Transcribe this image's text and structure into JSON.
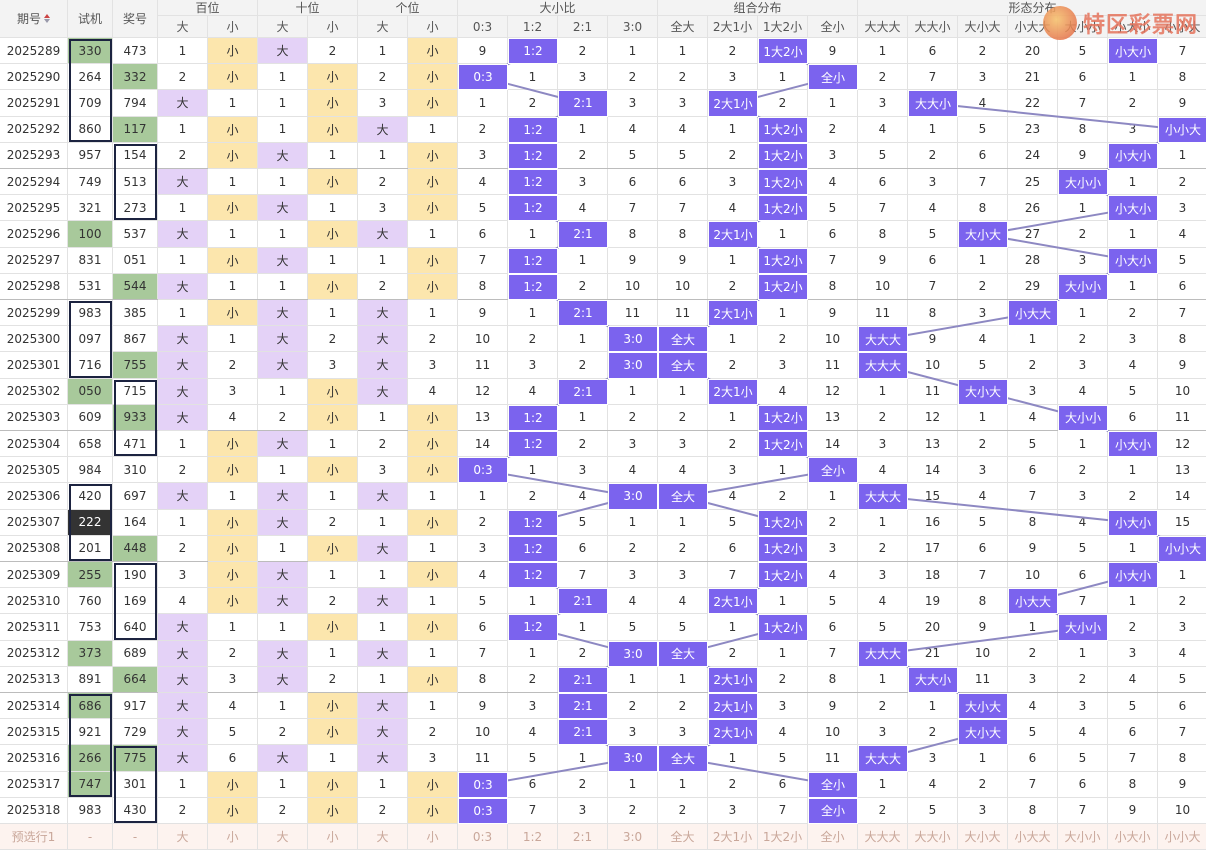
{
  "header": {
    "groups": [
      "期号",
      "试机",
      "奖号",
      "百位",
      "十位",
      "个位",
      "大小比",
      "组合分布",
      "形态分布"
    ],
    "sub_titles": [
      "大",
      "小",
      "大",
      "小",
      "大",
      "小",
      "0:3",
      "1:2",
      "2:1",
      "3:0",
      "全大",
      "2大1小",
      "1大2小",
      "全小",
      "大大大",
      "大大小",
      "大小大",
      "小大大",
      "大小小",
      "小大小",
      "小小大"
    ]
  },
  "rows": [
    {
      "period": "2025289",
      "trial": "330",
      "draw": "473",
      "cells": [
        "1",
        "小",
        "大",
        "2",
        "1",
        "小",
        "9",
        "1:2",
        "2",
        "1",
        "1",
        "2",
        "1大2小",
        "9",
        "1",
        "6",
        "2",
        "20",
        "5",
        "小大小",
        "7"
      ]
    },
    {
      "period": "2025290",
      "trial": "264",
      "draw": "332",
      "cells": [
        "2",
        "小",
        "1",
        "小",
        "2",
        "小",
        "0:3",
        "1",
        "3",
        "2",
        "2",
        "3",
        "1",
        "全小",
        "2",
        "7",
        "3",
        "21",
        "6",
        "1",
        "8"
      ]
    },
    {
      "period": "2025291",
      "trial": "709",
      "draw": "794",
      "cells": [
        "大",
        "1",
        "1",
        "小",
        "3",
        "小",
        "1",
        "2",
        "2:1",
        "3",
        "3",
        "2大1小",
        "2",
        "1",
        "3",
        "大大小",
        "4",
        "22",
        "7",
        "2",
        "9"
      ]
    },
    {
      "period": "2025292",
      "trial": "860",
      "draw": "117",
      "cells": [
        "1",
        "小",
        "1",
        "小",
        "大",
        "1",
        "2",
        "1:2",
        "1",
        "4",
        "4",
        "1",
        "1大2小",
        "2",
        "4",
        "1",
        "5",
        "23",
        "8",
        "3",
        "小小大"
      ]
    },
    {
      "period": "2025293",
      "trial": "957",
      "draw": "154",
      "cells": [
        "2",
        "小",
        "大",
        "1",
        "1",
        "小",
        "3",
        "1:2",
        "2",
        "5",
        "5",
        "2",
        "1大2小",
        "3",
        "5",
        "2",
        "6",
        "24",
        "9",
        "小大小",
        "1"
      ]
    },
    {
      "period": "2025294",
      "trial": "749",
      "draw": "513",
      "cells": [
        "大",
        "1",
        "1",
        "小",
        "2",
        "小",
        "4",
        "1:2",
        "3",
        "6",
        "6",
        "3",
        "1大2小",
        "4",
        "6",
        "3",
        "7",
        "25",
        "大小小",
        "1",
        "2"
      ]
    },
    {
      "period": "2025295",
      "trial": "321",
      "draw": "273",
      "cells": [
        "1",
        "小",
        "大",
        "1",
        "3",
        "小",
        "5",
        "1:2",
        "4",
        "7",
        "7",
        "4",
        "1大2小",
        "5",
        "7",
        "4",
        "8",
        "26",
        "1",
        "小大小",
        "3"
      ]
    },
    {
      "period": "2025296",
      "trial": "100",
      "draw": "537",
      "cells": [
        "大",
        "1",
        "1",
        "小",
        "大",
        "1",
        "6",
        "1",
        "2:1",
        "8",
        "8",
        "2大1小",
        "1",
        "6",
        "8",
        "5",
        "大小大",
        "27",
        "2",
        "1",
        "4"
      ]
    },
    {
      "period": "2025297",
      "trial": "831",
      "draw": "051",
      "cells": [
        "1",
        "小",
        "大",
        "1",
        "1",
        "小",
        "7",
        "1:2",
        "1",
        "9",
        "9",
        "1",
        "1大2小",
        "7",
        "9",
        "6",
        "1",
        "28",
        "3",
        "小大小",
        "5"
      ]
    },
    {
      "period": "2025298",
      "trial": "531",
      "draw": "544",
      "cells": [
        "大",
        "1",
        "1",
        "小",
        "2",
        "小",
        "8",
        "1:2",
        "2",
        "10",
        "10",
        "2",
        "1大2小",
        "8",
        "10",
        "7",
        "2",
        "29",
        "大小小",
        "1",
        "6"
      ]
    },
    {
      "period": "2025299",
      "trial": "983",
      "draw": "385",
      "cells": [
        "1",
        "小",
        "大",
        "1",
        "大",
        "1",
        "9",
        "1",
        "2:1",
        "11",
        "11",
        "2大1小",
        "1",
        "9",
        "11",
        "8",
        "3",
        "小大大",
        "1",
        "2",
        "7"
      ]
    },
    {
      "period": "2025300",
      "trial": "097",
      "draw": "867",
      "cells": [
        "大",
        "1",
        "大",
        "2",
        "大",
        "2",
        "10",
        "2",
        "1",
        "3:0",
        "全大",
        "1",
        "2",
        "10",
        "大大大",
        "9",
        "4",
        "1",
        "2",
        "3",
        "8"
      ]
    },
    {
      "period": "2025301",
      "trial": "716",
      "draw": "755",
      "cells": [
        "大",
        "2",
        "大",
        "3",
        "大",
        "3",
        "11",
        "3",
        "2",
        "3:0",
        "全大",
        "2",
        "3",
        "11",
        "大大大",
        "10",
        "5",
        "2",
        "3",
        "4",
        "9"
      ]
    },
    {
      "period": "2025302",
      "trial": "050",
      "draw": "715",
      "cells": [
        "大",
        "3",
        "1",
        "小",
        "大",
        "4",
        "12",
        "4",
        "2:1",
        "1",
        "1",
        "2大1小",
        "4",
        "12",
        "1",
        "11",
        "大小大",
        "3",
        "4",
        "5",
        "10"
      ]
    },
    {
      "period": "2025303",
      "trial": "609",
      "draw": "933",
      "cells": [
        "大",
        "4",
        "2",
        "小",
        "1",
        "小",
        "13",
        "1:2",
        "1",
        "2",
        "2",
        "1",
        "1大2小",
        "13",
        "2",
        "12",
        "1",
        "4",
        "大小小",
        "6",
        "11"
      ]
    },
    {
      "period": "2025304",
      "trial": "658",
      "draw": "471",
      "cells": [
        "1",
        "小",
        "大",
        "1",
        "2",
        "小",
        "14",
        "1:2",
        "2",
        "3",
        "3",
        "2",
        "1大2小",
        "14",
        "3",
        "13",
        "2",
        "5",
        "1",
        "小大小",
        "12"
      ]
    },
    {
      "period": "2025305",
      "trial": "984",
      "draw": "310",
      "cells": [
        "2",
        "小",
        "1",
        "小",
        "3",
        "小",
        "0:3",
        "1",
        "3",
        "4",
        "4",
        "3",
        "1",
        "全小",
        "4",
        "14",
        "3",
        "6",
        "2",
        "1",
        "13"
      ]
    },
    {
      "period": "2025306",
      "trial": "420",
      "draw": "697",
      "cells": [
        "大",
        "1",
        "大",
        "1",
        "大",
        "1",
        "1",
        "2",
        "4",
        "3:0",
        "全大",
        "4",
        "2",
        "1",
        "大大大",
        "15",
        "4",
        "7",
        "3",
        "2",
        "14"
      ]
    },
    {
      "period": "2025307",
      "trial": "222",
      "draw": "164",
      "cells": [
        "1",
        "小",
        "大",
        "2",
        "1",
        "小",
        "2",
        "1:2",
        "5",
        "1",
        "1",
        "5",
        "1大2小",
        "2",
        "1",
        "16",
        "5",
        "8",
        "4",
        "小大小",
        "15"
      ]
    },
    {
      "period": "2025308",
      "trial": "201",
      "draw": "448",
      "cells": [
        "2",
        "小",
        "1",
        "小",
        "大",
        "1",
        "3",
        "1:2",
        "6",
        "2",
        "2",
        "6",
        "1大2小",
        "3",
        "2",
        "17",
        "6",
        "9",
        "5",
        "1",
        "小小大"
      ]
    },
    {
      "period": "2025309",
      "trial": "255",
      "draw": "190",
      "cells": [
        "3",
        "小",
        "大",
        "1",
        "1",
        "小",
        "4",
        "1:2",
        "7",
        "3",
        "3",
        "7",
        "1大2小",
        "4",
        "3",
        "18",
        "7",
        "10",
        "6",
        "小大小",
        "1"
      ]
    },
    {
      "period": "2025310",
      "trial": "760",
      "draw": "169",
      "cells": [
        "4",
        "小",
        "大",
        "2",
        "大",
        "1",
        "5",
        "1",
        "2:1",
        "4",
        "4",
        "2大1小",
        "1",
        "5",
        "4",
        "19",
        "8",
        "小大大",
        "7",
        "1",
        "2"
      ]
    },
    {
      "period": "2025311",
      "trial": "753",
      "draw": "640",
      "cells": [
        "大",
        "1",
        "1",
        "小",
        "1",
        "小",
        "6",
        "1:2",
        "1",
        "5",
        "5",
        "1",
        "1大2小",
        "6",
        "5",
        "20",
        "9",
        "1",
        "大小小",
        "2",
        "3"
      ]
    },
    {
      "period": "2025312",
      "trial": "373",
      "draw": "689",
      "cells": [
        "大",
        "2",
        "大",
        "1",
        "大",
        "1",
        "7",
        "1",
        "2",
        "3:0",
        "全大",
        "2",
        "1",
        "7",
        "大大大",
        "21",
        "10",
        "2",
        "1",
        "3",
        "4"
      ]
    },
    {
      "period": "2025313",
      "trial": "891",
      "draw": "664",
      "cells": [
        "大",
        "3",
        "大",
        "2",
        "1",
        "小",
        "8",
        "2",
        "2:1",
        "1",
        "1",
        "2大1小",
        "2",
        "8",
        "1",
        "大大小",
        "11",
        "3",
        "2",
        "4",
        "5"
      ]
    },
    {
      "period": "2025314",
      "trial": "686",
      "draw": "917",
      "cells": [
        "大",
        "4",
        "1",
        "小",
        "大",
        "1",
        "9",
        "3",
        "2:1",
        "2",
        "2",
        "2大1小",
        "3",
        "9",
        "2",
        "1",
        "大小大",
        "4",
        "3",
        "5",
        "6"
      ]
    },
    {
      "period": "2025315",
      "trial": "921",
      "draw": "729",
      "cells": [
        "大",
        "5",
        "2",
        "小",
        "大",
        "2",
        "10",
        "4",
        "2:1",
        "3",
        "3",
        "2大1小",
        "4",
        "10",
        "3",
        "2",
        "大小大",
        "5",
        "4",
        "6",
        "7"
      ]
    },
    {
      "period": "2025316",
      "trial": "266",
      "draw": "775",
      "cells": [
        "大",
        "6",
        "大",
        "1",
        "大",
        "3",
        "11",
        "5",
        "1",
        "3:0",
        "全大",
        "1",
        "5",
        "11",
        "大大大",
        "3",
        "1",
        "6",
        "5",
        "7",
        "8"
      ]
    },
    {
      "period": "2025317",
      "trial": "747",
      "draw": "301",
      "cells": [
        "1",
        "小",
        "1",
        "小",
        "1",
        "小",
        "0:3",
        "6",
        "2",
        "1",
        "1",
        "2",
        "6",
        "全小",
        "1",
        "4",
        "2",
        "7",
        "6",
        "8",
        "9"
      ]
    },
    {
      "period": "2025318",
      "trial": "983",
      "draw": "430",
      "cells": [
        "2",
        "小",
        "2",
        "小",
        "2",
        "小",
        "0:3",
        "7",
        "3",
        "2",
        "2",
        "3",
        "7",
        "全小",
        "2",
        "5",
        "3",
        "8",
        "7",
        "9",
        "10"
      ]
    }
  ],
  "footer": [
    "预选行1",
    "-",
    "-",
    "大",
    "小",
    "大",
    "小",
    "大",
    "小",
    "0:3",
    "1:2",
    "2:1",
    "3:0",
    "全大",
    "2大1小",
    "1大2小",
    "全小",
    "大大大",
    "大大小",
    "大小大",
    "小大大",
    "大小小",
    "小大小",
    "小小大"
  ],
  "watermark": "特区彩票网"
}
